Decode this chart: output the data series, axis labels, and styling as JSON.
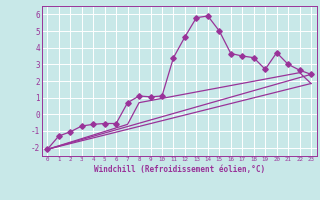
{
  "xlabel": "Windchill (Refroidissement éolien,°C)",
  "xlim": [
    -0.5,
    23.5
  ],
  "ylim": [
    -2.5,
    6.5
  ],
  "yticks": [
    -2,
    -1,
    0,
    1,
    2,
    3,
    4,
    5,
    6
  ],
  "xticks": [
    0,
    1,
    2,
    3,
    4,
    5,
    6,
    7,
    8,
    9,
    10,
    11,
    12,
    13,
    14,
    15,
    16,
    17,
    18,
    19,
    20,
    21,
    22,
    23
  ],
  "bg_color": "#c8e8e8",
  "grid_color": "#aacccc",
  "line_color": "#993399",
  "line1_x": [
    0,
    1,
    2,
    3,
    4,
    5,
    6,
    7,
    8,
    9,
    10,
    11,
    12,
    13,
    14,
    15,
    16,
    17,
    18,
    19,
    20,
    21,
    22,
    23
  ],
  "line1_y": [
    -2.1,
    -1.3,
    -1.05,
    -0.7,
    -0.6,
    -0.55,
    -0.55,
    0.7,
    1.1,
    1.05,
    1.1,
    3.4,
    4.65,
    5.8,
    5.9,
    5.0,
    3.65,
    3.5,
    3.4,
    2.7,
    3.7,
    3.0,
    2.65,
    2.4
  ],
  "line2_x": [
    0,
    23
  ],
  "line2_y": [
    -2.1,
    1.85
  ],
  "line3_x": [
    0,
    7,
    8,
    22,
    23
  ],
  "line3_y": [
    -2.1,
    -0.6,
    0.7,
    2.5,
    1.85
  ],
  "line4_x": [
    0,
    23
  ],
  "line4_y": [
    -2.1,
    2.4
  ]
}
